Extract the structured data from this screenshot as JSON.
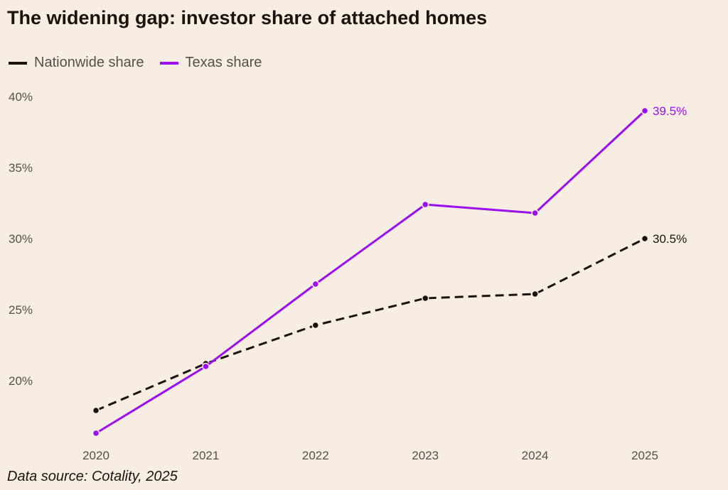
{
  "title": "The widening gap: investor share of attached homes",
  "source": "Data source: Cotality, 2025",
  "chart_data": {
    "type": "line",
    "x": [
      "2020",
      "2021",
      "2022",
      "2023",
      "2024",
      "2025"
    ],
    "yticks": [
      20,
      25,
      30,
      35,
      40
    ],
    "ytick_labels": [
      "20%",
      "25%",
      "30%",
      "35%",
      "40%"
    ],
    "ylim": [
      15,
      41
    ],
    "grid": false,
    "legend_position": "top-left",
    "series": [
      {
        "name": "Nationwide share",
        "color": "#1a140c",
        "dashed": true,
        "values": [
          18.4,
          21.7,
          24.4,
          26.3,
          26.6,
          30.5
        ],
        "end_label": "30.5%"
      },
      {
        "name": "Texas share",
        "color": "#9b0ff0",
        "dashed": false,
        "values": [
          16.8,
          21.5,
          27.3,
          32.9,
          32.3,
          39.5
        ],
        "end_label": "39.5%"
      }
    ]
  }
}
